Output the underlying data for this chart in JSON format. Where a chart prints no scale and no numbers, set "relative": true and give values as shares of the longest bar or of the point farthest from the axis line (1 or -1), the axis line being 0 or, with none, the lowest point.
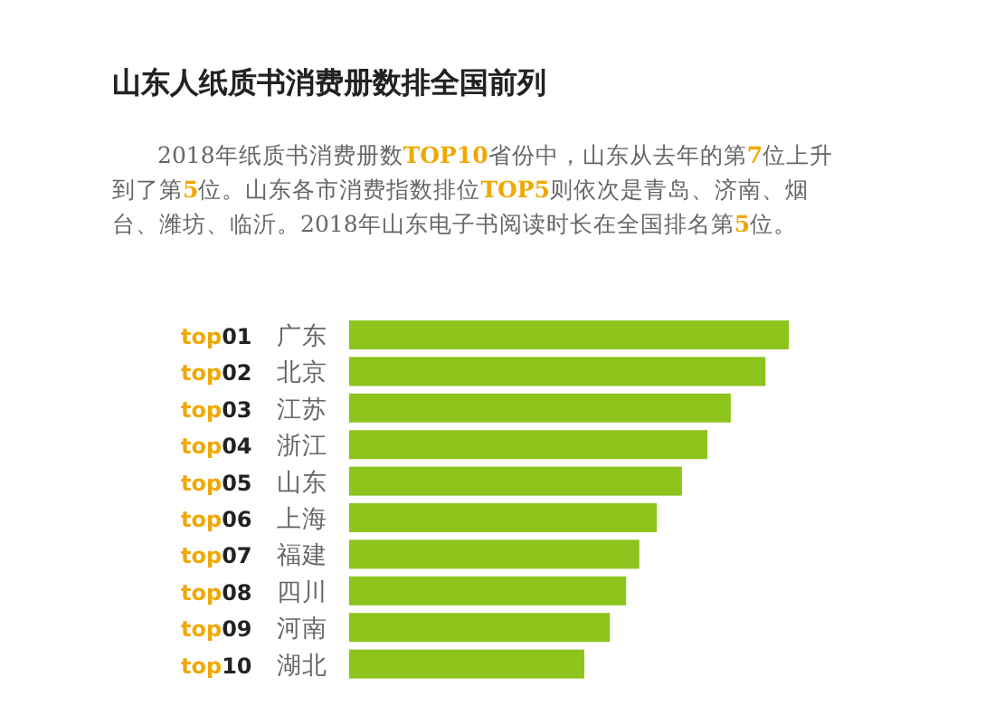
{
  "chart_data": {
    "type": "bar",
    "orientation": "horizontal",
    "relative": true,
    "title": "山东人纸质书消费册数排全国前列",
    "subtitle": "2018年纸质书消费册数**TOP10**省份中，山东从去年的第**7**位上升到了第**5**位。山东各市消费指数排位**TOP5**则依次是青岛、济南、烟台、潍坊、临沂。2018年山东电子书阅读时长在全国排名第**5**位。",
    "categories": [
      "top01 广东",
      "top02 北京",
      "top03 江苏",
      "top04 浙江",
      "top05 山东",
      "top06 上海",
      "top07 福建",
      "top08 四川",
      "top09 河南",
      "top10 湖北"
    ],
    "values": [
      1,
      0.947,
      0.868,
      0.815,
      0.757,
      0.7,
      0.66,
      0.63,
      0.593,
      0.535
    ],
    "color": "#8cc41c"
  }
}
